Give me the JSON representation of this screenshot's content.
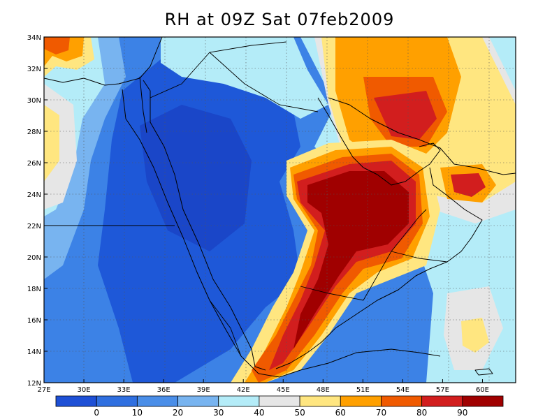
{
  "title": "RH at 09Z Sat 07feb2009",
  "map": {
    "lon_range": [
      27,
      62.5
    ],
    "lat_range": [
      12,
      34
    ],
    "lon_ticks": [
      "27E",
      "30E",
      "33E",
      "36E",
      "39E",
      "42E",
      "45E",
      "48E",
      "51E",
      "54E",
      "57E",
      "60E"
    ],
    "lat_ticks": [
      "12N",
      "14N",
      "16N",
      "18N",
      "20N",
      "22N",
      "24N",
      "26N",
      "28N",
      "30N",
      "32N",
      "34N"
    ],
    "grid": true,
    "variable": "relative humidity (%)"
  },
  "colorbar": {
    "labels": [
      "0",
      "10",
      "20",
      "30",
      "40",
      "50",
      "60",
      "70",
      "80",
      "90"
    ],
    "levels": [
      0,
      10,
      20,
      30,
      40,
      50,
      60,
      70,
      80,
      90
    ],
    "colors": [
      "#1e50d6",
      "#2f6fe0",
      "#4a8ee8",
      "#78b4f0",
      "#b4ecf8",
      "#e6e6e6",
      "#ffe680",
      "#ffa000",
      "#f05a00",
      "#d21e1e",
      "#a00000"
    ]
  },
  "regions": {
    "background": "#3c82e6",
    "dry_core": "#1e58d8",
    "very_dry": "#1a46c8",
    "moderate": "#78b4f0",
    "light": "#b4ecf8",
    "neutral": "#e6e6e6",
    "yellow": "#ffe680",
    "orange": "#ffa000",
    "red_orange": "#f05a00",
    "red": "#d21e1e",
    "dark_red": "#a00000"
  }
}
